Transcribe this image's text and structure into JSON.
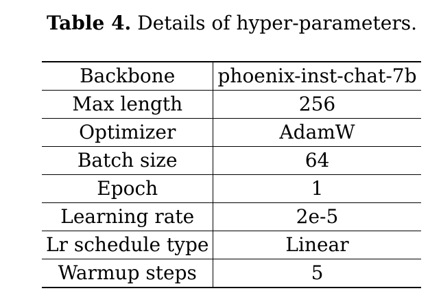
{
  "caption": {
    "label": "Table 4.",
    "text": "Details of hyper-parameters."
  },
  "table": {
    "rows": [
      {
        "key": "Backbone",
        "value": "phoenix-inst-chat-7b"
      },
      {
        "key": "Max length",
        "value": "256"
      },
      {
        "key": "Optimizer",
        "value": "AdamW"
      },
      {
        "key": "Batch size",
        "value": "64"
      },
      {
        "key": "Epoch",
        "value": "1"
      },
      {
        "key": "Learning rate",
        "value": "2e-5"
      },
      {
        "key": "Lr schedule type",
        "value": "Linear"
      },
      {
        "key": "Warmup steps",
        "value": "5"
      }
    ]
  }
}
